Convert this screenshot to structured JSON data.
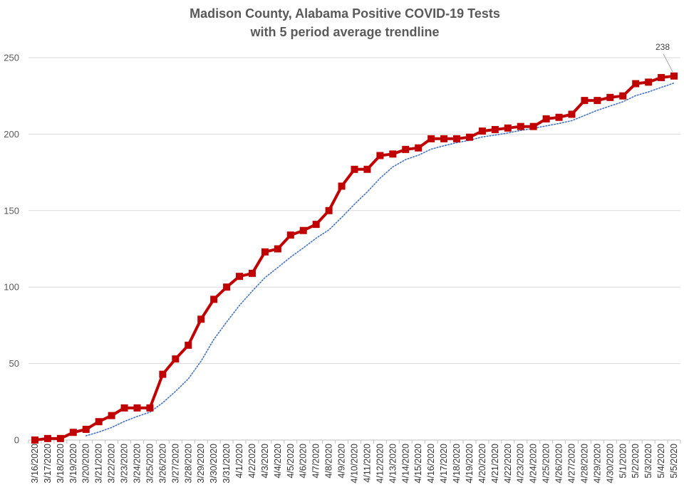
{
  "chart_data": {
    "type": "line",
    "title_line1": "Madison County, Alabama Positive COVID-19 Tests",
    "title_line2": "with 5 period average trendline",
    "xlabel": "",
    "ylabel": "",
    "ylim": [
      0,
      250
    ],
    "yticks": [
      0,
      50,
      100,
      150,
      200,
      250
    ],
    "grid": true,
    "categories": [
      "3/16/2020",
      "3/17/2020",
      "3/18/2020",
      "3/19/2020",
      "3/20/2020",
      "3/21/2020",
      "3/22/2020",
      "3/23/2020",
      "3/24/2020",
      "3/25/2020",
      "3/26/2020",
      "3/27/2020",
      "3/28/2020",
      "3/29/2020",
      "3/30/2020",
      "3/31/2020",
      "4/1/2020",
      "4/2/2020",
      "4/3/2020",
      "4/4/2020",
      "4/5/2020",
      "4/6/2020",
      "4/7/2020",
      "4/8/2020",
      "4/9/2020",
      "4/10/2020",
      "4/11/2020",
      "4/12/2020",
      "4/13/2020",
      "4/14/2020",
      "4/15/2020",
      "4/16/2020",
      "4/17/2020",
      "4/18/2020",
      "4/19/2020",
      "4/20/2020",
      "4/21/2020",
      "4/22/2020",
      "4/23/2020",
      "4/24/2020",
      "4/25/2020",
      "4/26/2020",
      "4/27/2020",
      "4/28/2020",
      "4/29/2020",
      "4/30/2020",
      "5/1/2020",
      "5/2/2020",
      "5/3/2020",
      "5/4/2020",
      "5/5/2020"
    ],
    "series": [
      {
        "values": [
          0,
          1,
          1,
          5,
          7,
          12,
          16,
          21,
          21,
          21,
          43,
          53,
          62,
          79,
          92,
          100,
          107,
          109,
          123,
          125,
          134,
          137,
          141,
          150,
          166,
          177,
          177,
          186,
          187,
          190,
          191,
          197,
          197,
          197,
          198,
          202,
          203,
          204,
          205,
          205,
          210,
          211,
          213,
          222,
          222,
          224,
          225,
          233,
          234,
          237,
          238
        ],
        "color": "#c00000",
        "marker": "square"
      }
    ],
    "trendline": {
      "type": "moving-average",
      "period": 5,
      "color": "#4472c4",
      "style": "dotted"
    },
    "annotations": [
      {
        "category": "5/5/2020",
        "value": 238,
        "text": "238"
      }
    ]
  }
}
